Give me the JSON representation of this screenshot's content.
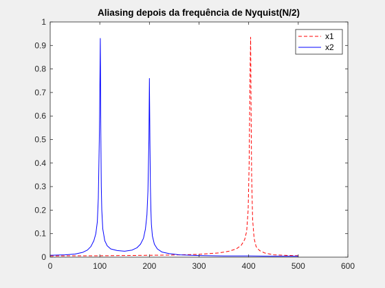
{
  "chart_data": {
    "type": "line",
    "title": "Aliasing depois da frequência de Nyquist(N/2)",
    "xlabel": "",
    "ylabel": "",
    "xlim": [
      0,
      600
    ],
    "ylim": [
      0,
      1
    ],
    "grid": false,
    "legend_position": "top-right",
    "xticks": [
      "0",
      "100",
      "200",
      "300",
      "400",
      "500",
      "600"
    ],
    "yticks": [
      "0",
      "0.1",
      "0.2",
      "0.3",
      "0.4",
      "0.5",
      "0.6",
      "0.7",
      "0.8",
      "0.9",
      "1"
    ],
    "series": [
      {
        "name": "x1",
        "color": "#ff0000",
        "dash": "dashed",
        "x": [
          0,
          50,
          100,
          150,
          200,
          250,
          300,
          340,
          360,
          375,
          385,
          392,
          396,
          399,
          401,
          402,
          403,
          404,
          405,
          406,
          408,
          411,
          415,
          422,
          432,
          450,
          470,
          500
        ],
        "y": [
          0.005,
          0.006,
          0.006,
          0.007,
          0.008,
          0.009,
          0.012,
          0.018,
          0.025,
          0.035,
          0.05,
          0.075,
          0.11,
          0.2,
          0.4,
          0.6,
          0.8,
          0.935,
          0.6,
          0.35,
          0.16,
          0.08,
          0.045,
          0.028,
          0.018,
          0.01,
          0.008,
          0.006
        ]
      },
      {
        "name": "x2",
        "color": "#0000ff",
        "dash": "solid",
        "x": [
          0,
          30,
          50,
          65,
          75,
          82,
          88,
          92,
          95,
          97,
          99,
          100,
          101,
          102,
          103,
          104,
          106,
          110,
          115,
          122,
          135,
          150,
          165,
          175,
          182,
          188,
          192,
          195,
          197,
          199,
          200,
          201,
          202,
          203,
          204,
          206,
          210,
          216,
          225,
          240,
          260,
          300,
          350,
          400,
          450,
          500
        ],
        "y": [
          0.008,
          0.01,
          0.013,
          0.02,
          0.03,
          0.045,
          0.07,
          0.1,
          0.15,
          0.25,
          0.5,
          0.7,
          0.93,
          0.55,
          0.3,
          0.2,
          0.12,
          0.07,
          0.048,
          0.035,
          0.028,
          0.025,
          0.03,
          0.04,
          0.055,
          0.08,
          0.12,
          0.18,
          0.28,
          0.5,
          0.76,
          0.5,
          0.3,
          0.2,
          0.14,
          0.09,
          0.055,
          0.035,
          0.022,
          0.015,
          0.01,
          0.007,
          0.005,
          0.005,
          0.004,
          0.004
        ]
      }
    ]
  }
}
